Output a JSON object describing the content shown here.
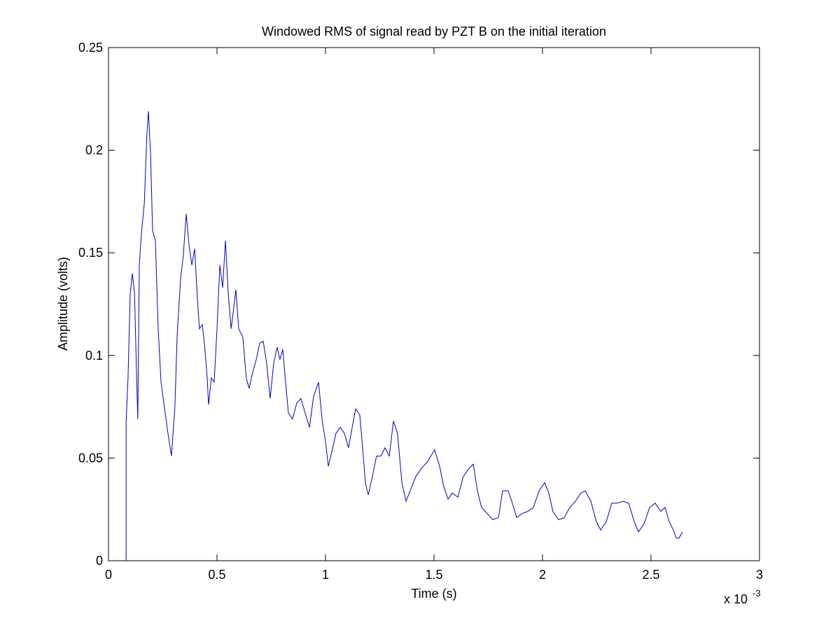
{
  "chart_data": {
    "type": "line",
    "title": "Windowed RMS of signal read by PZT B on the initial iteration",
    "x_label": "Time (s)",
    "y_label": "Amplitude (volts)",
    "x_exponent_base": "x 10",
    "x_exponent": "-3",
    "xlim": [
      0,
      3
    ],
    "ylim": [
      0,
      0.25
    ],
    "xticks": [
      0,
      0.5,
      1,
      1.5,
      2,
      2.5,
      3
    ],
    "yticks": [
      0,
      0.05,
      0.1,
      0.15,
      0.2,
      0.25
    ],
    "color": "#0000cc",
    "x": [
      0.081,
      0.081,
      0.09,
      0.1,
      0.11,
      0.12,
      0.129,
      0.135,
      0.142,
      0.152,
      0.165,
      0.177,
      0.184,
      0.194,
      0.203,
      0.216,
      0.229,
      0.242,
      0.261,
      0.274,
      0.29,
      0.306,
      0.316,
      0.332,
      0.345,
      0.358,
      0.371,
      0.384,
      0.397,
      0.41,
      0.419,
      0.432,
      0.442,
      0.455,
      0.461,
      0.474,
      0.487,
      0.5,
      0.513,
      0.526,
      0.539,
      0.552,
      0.565,
      0.577,
      0.587,
      0.6,
      0.619,
      0.635,
      0.648,
      0.665,
      0.681,
      0.697,
      0.713,
      0.729,
      0.745,
      0.761,
      0.777,
      0.79,
      0.803,
      0.816,
      0.829,
      0.848,
      0.868,
      0.887,
      0.906,
      0.926,
      0.945,
      0.968,
      0.984,
      1.0,
      1.013,
      1.029,
      1.048,
      1.068,
      1.087,
      1.106,
      1.123,
      1.139,
      1.158,
      1.171,
      1.184,
      1.197,
      1.216,
      1.235,
      1.255,
      1.274,
      1.294,
      1.313,
      1.332,
      1.352,
      1.371,
      1.39,
      1.416,
      1.442,
      1.468,
      1.503,
      1.526,
      1.545,
      1.565,
      1.584,
      1.61,
      1.635,
      1.661,
      1.681,
      1.7,
      1.719,
      1.745,
      1.771,
      1.797,
      1.816,
      1.842,
      1.861,
      1.881,
      1.906,
      1.932,
      1.958,
      1.984,
      2.01,
      2.029,
      2.048,
      2.074,
      2.1,
      2.126,
      2.152,
      2.177,
      2.197,
      2.223,
      2.248,
      2.268,
      2.294,
      2.319,
      2.345,
      2.371,
      2.397,
      2.423,
      2.442,
      2.468,
      2.494,
      2.519,
      2.545,
      2.565,
      2.584,
      2.603,
      2.616,
      2.629,
      2.645
    ],
    "values": [
      0,
      0.067,
      0.089,
      0.13,
      0.14,
      0.13,
      0.092,
      0.069,
      0.144,
      0.16,
      0.174,
      0.208,
      0.219,
      0.198,
      0.161,
      0.156,
      0.113,
      0.087,
      0.072,
      0.062,
      0.051,
      0.075,
      0.109,
      0.137,
      0.149,
      0.169,
      0.154,
      0.144,
      0.152,
      0.127,
      0.113,
      0.115,
      0.106,
      0.089,
      0.076,
      0.089,
      0.087,
      0.113,
      0.144,
      0.133,
      0.156,
      0.13,
      0.113,
      0.123,
      0.132,
      0.113,
      0.109,
      0.089,
      0.084,
      0.092,
      0.098,
      0.106,
      0.107,
      0.096,
      0.079,
      0.096,
      0.104,
      0.098,
      0.103,
      0.087,
      0.072,
      0.069,
      0.077,
      0.079,
      0.072,
      0.065,
      0.08,
      0.087,
      0.069,
      0.058,
      0.046,
      0.053,
      0.062,
      0.065,
      0.062,
      0.055,
      0.065,
      0.074,
      0.071,
      0.055,
      0.038,
      0.032,
      0.041,
      0.051,
      0.051,
      0.055,
      0.051,
      0.068,
      0.062,
      0.038,
      0.029,
      0.034,
      0.041,
      0.045,
      0.048,
      0.054,
      0.046,
      0.036,
      0.03,
      0.033,
      0.031,
      0.041,
      0.045,
      0.047,
      0.034,
      0.026,
      0.023,
      0.02,
      0.021,
      0.034,
      0.034,
      0.028,
      0.021,
      0.023,
      0.024,
      0.026,
      0.034,
      0.038,
      0.033,
      0.024,
      0.02,
      0.021,
      0.026,
      0.029,
      0.033,
      0.034,
      0.029,
      0.019,
      0.015,
      0.019,
      0.028,
      0.028,
      0.029,
      0.028,
      0.019,
      0.014,
      0.018,
      0.026,
      0.028,
      0.024,
      0.026,
      0.019,
      0.015,
      0.011,
      0.011,
      0.014
    ]
  }
}
